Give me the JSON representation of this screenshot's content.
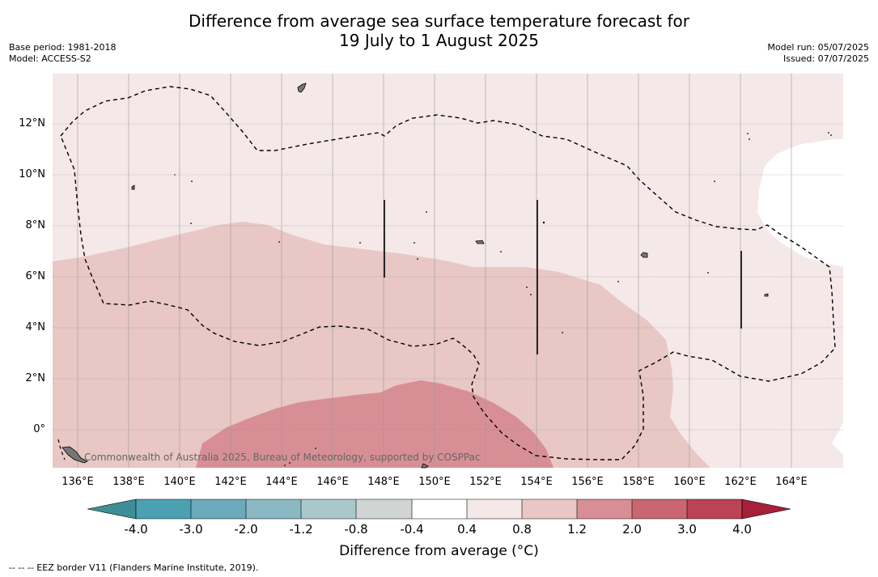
{
  "title_line1": "Difference from average sea surface temperature forecast for",
  "title_line2": "19 July to 1 August 2025",
  "base_period": "Base period: 1981-2018",
  "model": "Model: ACCESS-S2",
  "model_run": "Model run: 05/07/2025",
  "issued": "Issued: 07/07/2025",
  "copyright": "Commonwealth of Australia 2025, Bureau of Meteorology, supported by COSPPac",
  "footnote": "--  --  -- EEZ border V11 (Flanders Marine Institute, 2019).",
  "colorbar": {
    "label": "Difference from average (°C)",
    "ticks": [
      "-4.0",
      "-3.0",
      "-2.0",
      "-1.2",
      "-0.8",
      "-0.4",
      "0.4",
      "0.8",
      "1.2",
      "2.0",
      "3.0",
      "4.0"
    ],
    "colors": [
      "#4ba1b2",
      "#6aaabb",
      "#8ab9c4",
      "#a9c8cc",
      "#d0d4d4",
      "#ffffff",
      "#f5e8e8",
      "#e8c7c4",
      "#d78f95",
      "#c9666f",
      "#bb4354"
    ],
    "extend_low_color": "#3e8e95",
    "extend_high_color": "#a6203a"
  },
  "map": {
    "x_ticks": [
      "136°E",
      "138°E",
      "140°E",
      "142°E",
      "144°E",
      "146°E",
      "148°E",
      "150°E",
      "152°E",
      "154°E",
      "156°E",
      "158°E",
      "160°E",
      "162°E",
      "164°E"
    ],
    "y_ticks": [
      "12°N",
      "10°N",
      "8°N",
      "6°N",
      "4°N",
      "2°N",
      "0°"
    ],
    "lon_range": [
      135,
      166
    ],
    "lat_range": [
      -1.5,
      14
    ],
    "colors": {
      "band_0p4_0p8": "#f5e8e8",
      "band_0p8_1p2": "#e8c7c4",
      "band_1p2_2p0": "#d78f95",
      "band_neutral": "#ffffff"
    }
  }
}
